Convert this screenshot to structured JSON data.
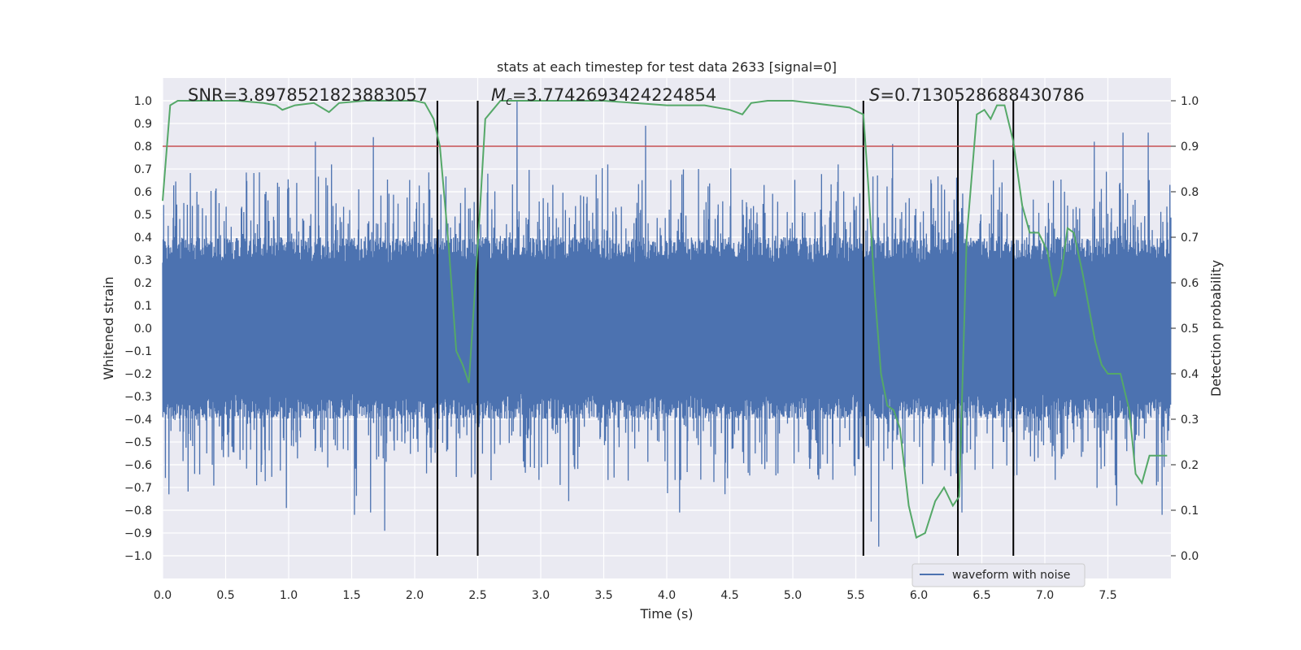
{
  "chart_data": {
    "type": "line",
    "title": "stats at each timestep for test data 2633 [signal=0]",
    "xlabel": "Time (s)",
    "ylabel": "Whitened strain",
    "y2label": "Detection probability",
    "xlim": [
      0,
      8
    ],
    "ylim": [
      -1.1,
      1.1
    ],
    "y2lim": [
      -0.05,
      1.05
    ],
    "x_ticks": [
      "0.0",
      "0.5",
      "1.0",
      "1.5",
      "2.0",
      "2.5",
      "3.0",
      "3.5",
      "4.0",
      "4.5",
      "5.0",
      "5.5",
      "6.0",
      "6.5",
      "7.0",
      "7.5"
    ],
    "y_ticks": [
      "1.0",
      "0.9",
      "0.8",
      "0.7",
      "0.6",
      "0.5",
      "0.4",
      "0.3",
      "0.2",
      "0.1",
      "0.0",
      "-0.1",
      "-0.2",
      "-0.3",
      "-0.4",
      "-0.5",
      "-0.6",
      "-0.7",
      "-0.8",
      "-0.9",
      "-1.0"
    ],
    "y2_ticks": [
      "1.0",
      "0.9",
      "0.8",
      "0.7",
      "0.6",
      "0.5",
      "0.4",
      "0.3",
      "0.2",
      "0.1",
      "0.0"
    ],
    "annotations": {
      "snr": "SNR=3.8978521823883057",
      "mc_prefix": "M",
      "mc_sub": "c",
      "mc_value": "=3.7742693424224854",
      "s_prefix": "S",
      "s_value": "=0.7130528688430786"
    },
    "threshold": {
      "value": 0.9,
      "axis": "right",
      "color": "#c44e52"
    },
    "vertical_lines": [
      2.18,
      2.5,
      5.56,
      6.31,
      6.75
    ],
    "legend": {
      "entries": [
        "waveform with noise"
      ],
      "placement": "lower-right"
    },
    "grid": true,
    "series": [
      {
        "name": "waveform with noise",
        "axis": "left",
        "kind": "noise",
        "color": "#4c72b0",
        "typical_amplitude": 0.4,
        "peaks": [
          {
            "x": 0.27,
            "y": 0.6
          },
          {
            "x": 0.82,
            "y": 0.6
          },
          {
            "x": 1.21,
            "y": 0.82
          },
          {
            "x": 1.34,
            "y": 0.72
          },
          {
            "x": 1.67,
            "y": 0.84
          },
          {
            "x": 2.12,
            "y": 0.61
          },
          {
            "x": 2.81,
            "y": 1.0
          },
          {
            "x": 3.53,
            "y": 0.72
          },
          {
            "x": 3.83,
            "y": 0.89
          },
          {
            "x": 4.25,
            "y": 0.7
          },
          {
            "x": 4.77,
            "y": 0.63
          },
          {
            "x": 5.36,
            "y": 0.72
          },
          {
            "x": 5.79,
            "y": 0.81
          },
          {
            "x": 6.59,
            "y": 0.74
          },
          {
            "x": 7.39,
            "y": 0.82
          },
          {
            "x": 7.62,
            "y": 0.86
          },
          {
            "x": 7.82,
            "y": 0.86
          },
          {
            "x": 1.52,
            "y": -0.82
          },
          {
            "x": 1.65,
            "y": -0.81
          },
          {
            "x": 1.76,
            "y": -0.89
          },
          {
            "x": 3.22,
            "y": -0.76
          },
          {
            "x": 4.1,
            "y": -0.81
          },
          {
            "x": 5.62,
            "y": -0.85
          },
          {
            "x": 5.68,
            "y": -0.96
          },
          {
            "x": 6.34,
            "y": -0.81
          },
          {
            "x": 7.57,
            "y": -0.78
          },
          {
            "x": 7.93,
            "y": -0.82
          },
          {
            "x": 0.05,
            "y": -0.73
          },
          {
            "x": 0.98,
            "y": -0.79
          }
        ]
      },
      {
        "name": "detection probability",
        "axis": "right",
        "color": "#55a868",
        "x": [
          0.0,
          0.06,
          0.12,
          0.2,
          0.4,
          0.6,
          0.8,
          0.9,
          0.95,
          1.05,
          1.2,
          1.32,
          1.4,
          1.6,
          1.8,
          2.0,
          2.08,
          2.15,
          2.2,
          2.27,
          2.33,
          2.38,
          2.43,
          2.47,
          2.52,
          2.56,
          2.62,
          2.68,
          2.8,
          3.0,
          3.5,
          4.0,
          4.3,
          4.5,
          4.6,
          4.67,
          4.8,
          5.0,
          5.3,
          5.45,
          5.52,
          5.56,
          5.6,
          5.65,
          5.7,
          5.75,
          5.8,
          5.85,
          5.92,
          5.98,
          6.05,
          6.13,
          6.2,
          6.27,
          6.32,
          6.38,
          6.46,
          6.52,
          6.57,
          6.62,
          6.68,
          6.75,
          6.82,
          6.88,
          6.95,
          7.02,
          7.08,
          7.13,
          7.18,
          7.23,
          7.3,
          7.4,
          7.45,
          7.5,
          7.55,
          7.6,
          7.67,
          7.72,
          7.77,
          7.83,
          7.9,
          7.97
        ],
        "y": [
          0.78,
          0.99,
          1.0,
          1.0,
          1.0,
          1.0,
          0.995,
          0.99,
          0.98,
          0.99,
          0.995,
          0.975,
          0.995,
          1.0,
          1.0,
          1.0,
          0.995,
          0.96,
          0.9,
          0.68,
          0.45,
          0.42,
          0.38,
          0.55,
          0.77,
          0.96,
          0.98,
          1.0,
          1.0,
          1.0,
          1.0,
          0.99,
          0.99,
          0.98,
          0.97,
          0.995,
          1.0,
          1.0,
          0.99,
          0.985,
          0.975,
          0.97,
          0.81,
          0.58,
          0.4,
          0.33,
          0.32,
          0.28,
          0.11,
          0.04,
          0.05,
          0.12,
          0.15,
          0.11,
          0.13,
          0.7,
          0.97,
          0.98,
          0.96,
          0.99,
          0.99,
          0.91,
          0.77,
          0.71,
          0.71,
          0.67,
          0.57,
          0.62,
          0.72,
          0.71,
          0.62,
          0.47,
          0.42,
          0.4,
          0.4,
          0.4,
          0.32,
          0.18,
          0.16,
          0.22,
          0.22,
          0.22
        ]
      }
    ]
  }
}
